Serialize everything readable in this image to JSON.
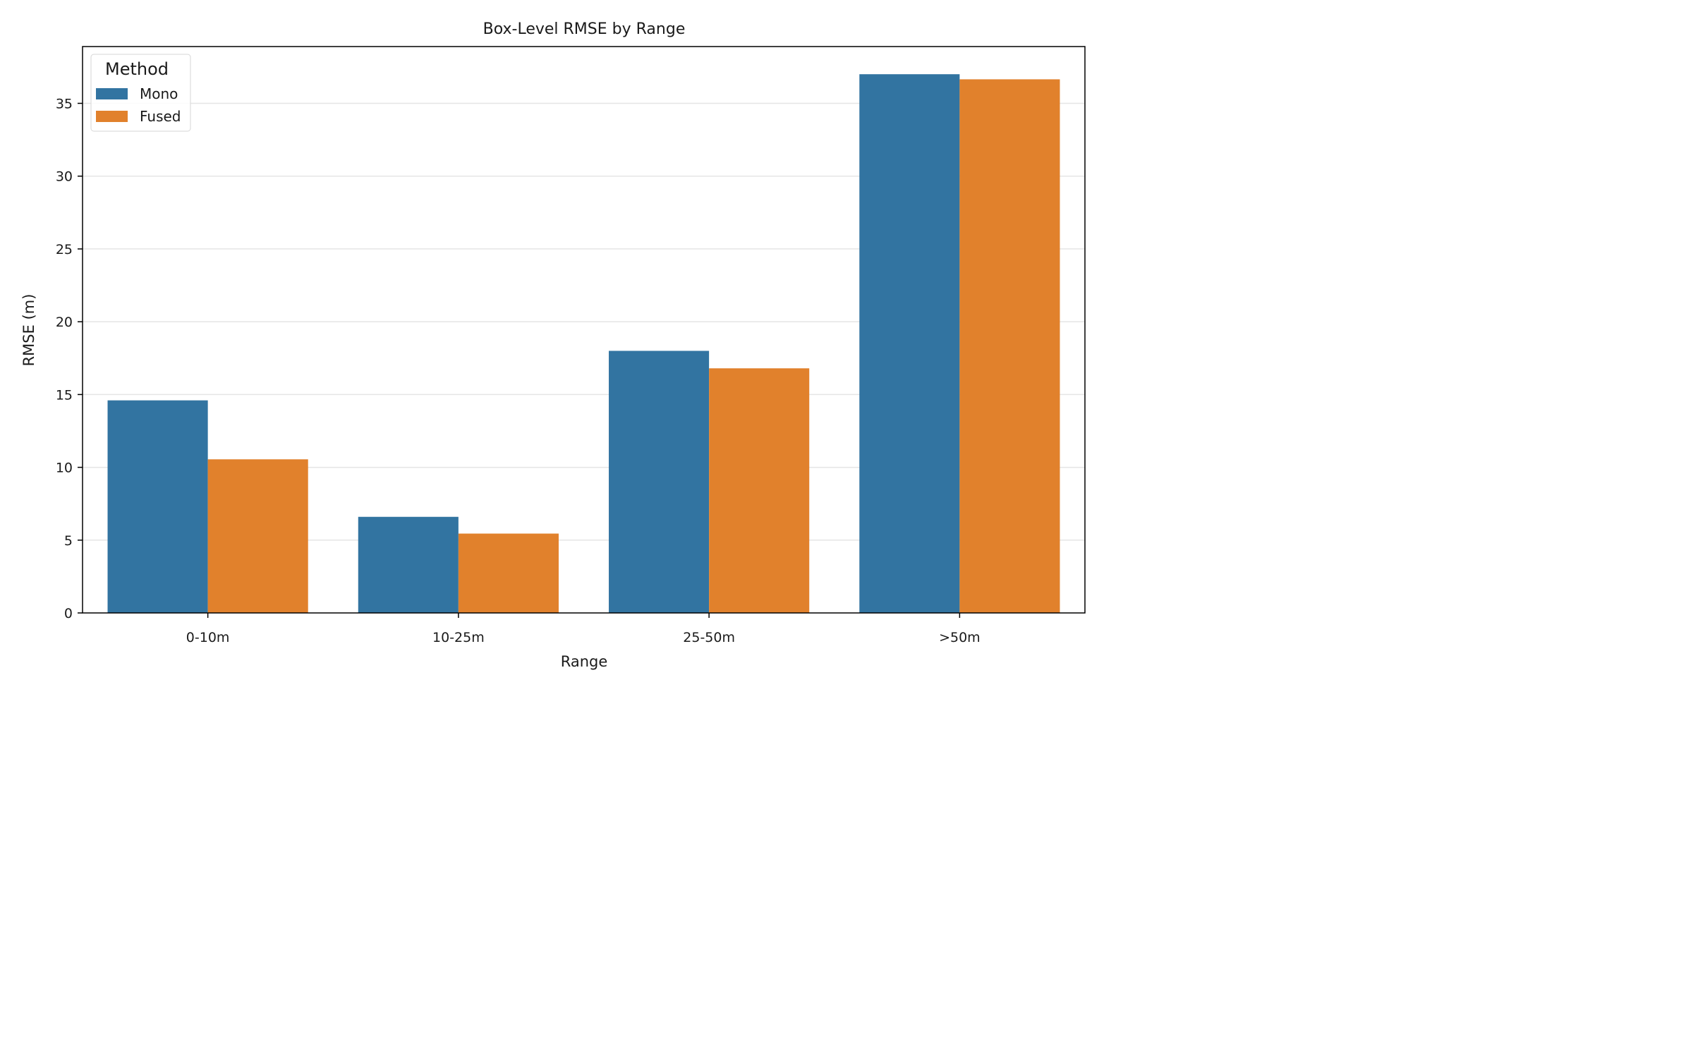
{
  "chart_data": {
    "type": "bar",
    "title": "Box-Level RMSE by Range",
    "xlabel": "Range",
    "ylabel": "RMSE (m)",
    "categories": [
      "0-10m",
      "10-25m",
      "25-50m",
      ">50m"
    ],
    "series": [
      {
        "name": "Mono",
        "values": [
          14.6,
          6.6,
          18.0,
          37.0
        ],
        "color": "#3274a1"
      },
      {
        "name": "Fused",
        "values": [
          10.55,
          5.45,
          16.8,
          36.65
        ],
        "color": "#e1812c"
      }
    ],
    "ylim": [
      0,
      38.9
    ],
    "yticks": [
      0,
      5,
      10,
      15,
      20,
      25,
      30,
      35
    ],
    "grid": true,
    "legend": {
      "title": "Method",
      "position": "top-left"
    }
  }
}
